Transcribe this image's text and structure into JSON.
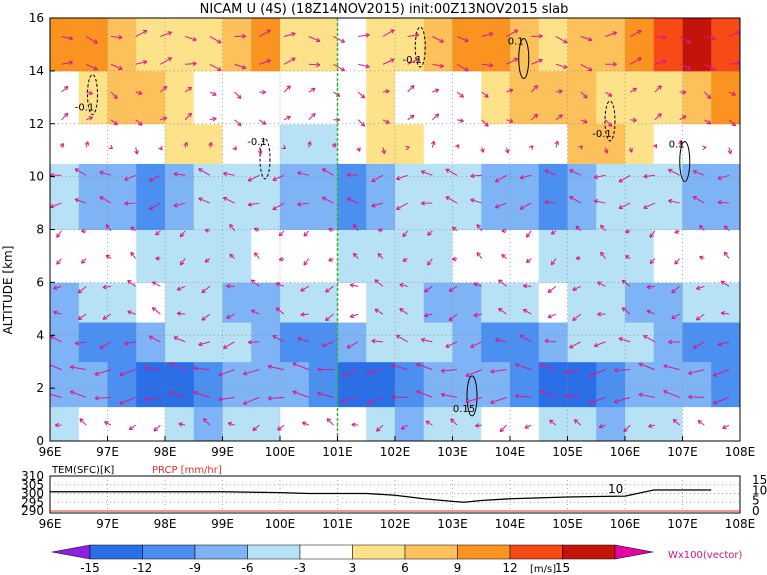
{
  "title": "NICAM U (4S) (18Z14NOV2015) init:00Z13NOV2015 slab",
  "chart_data": [
    {
      "type": "heatmap",
      "xlabel": "",
      "ylabel": "ALTITUDE [km]",
      "x_ticks": [
        "96E",
        "97E",
        "98E",
        "99E",
        "100E",
        "101E",
        "102E",
        "103E",
        "104E",
        "105E",
        "106E",
        "107E",
        "108E"
      ],
      "y_ticks": [
        "0",
        "2",
        "4",
        "6",
        "8",
        "10",
        "12",
        "14",
        "16"
      ],
      "xlim": [
        96,
        108
      ],
      "ylim": [
        0,
        16
      ],
      "marker_line_lon": 101.0,
      "contour_labels": [
        {
          "text": "-0.1",
          "lon": 96.6,
          "alt": 12.5
        },
        {
          "text": "-0.1",
          "lon": 99.6,
          "alt": 11.2
        },
        {
          "text": "-0.1",
          "lon": 102.3,
          "alt": 14.3
        },
        {
          "text": "0.1",
          "lon": 104.1,
          "alt": 15.0
        },
        {
          "text": "-0.1",
          "lon": 105.6,
          "alt": 11.5
        },
        {
          "text": "0.1",
          "lon": 106.9,
          "alt": 11.1
        },
        {
          "text": "0.15",
          "lon": 103.2,
          "alt": 1.1
        }
      ],
      "u_field_m_per_s": [
        {
          "alt_range": [
            0,
            1.3
          ],
          "u": -4
        },
        {
          "alt_range": [
            1.3,
            3.0
          ],
          "u": -10
        },
        {
          "alt_range": [
            3.0,
            4.5
          ],
          "u": -7
        },
        {
          "alt_range": [
            4.5,
            6.0
          ],
          "u": -5
        },
        {
          "alt_range": [
            6.0,
            8.0
          ],
          "u": -3
        },
        {
          "alt_range": [
            8.0,
            10.5
          ],
          "u": -7
        },
        {
          "alt_range": [
            10.5,
            12.0
          ],
          "u": 1
        },
        {
          "alt_range": [
            12.0,
            14.0
          ],
          "u": 4
        },
        {
          "alt_range": [
            14.0,
            16.0
          ],
          "u": 7
        }
      ]
    },
    {
      "type": "line",
      "left_label": "TEM(SFC)[K]",
      "right_label": "PRCP [mm/hr]",
      "left_ticks": [
        "290",
        "295",
        "300",
        "305",
        "310"
      ],
      "right_ticks": [
        "0",
        "5",
        "10",
        "15"
      ],
      "x_ticks": [
        "96E",
        "97E",
        "98E",
        "99E",
        "100E",
        "101E",
        "102E",
        "103E",
        "104E",
        "105E",
        "106E",
        "107E",
        "108E"
      ],
      "series": [
        {
          "x": [
            96,
            96.5,
            97,
            98,
            99,
            100,
            100.5,
            101,
            101.5,
            102,
            102.5,
            103,
            103.2,
            103.5,
            104,
            104.5,
            105,
            105.5,
            106,
            106.5,
            107,
            107.5
          ],
          "values": [
            301,
            301,
            301,
            301,
            301,
            300.5,
            300,
            300,
            300,
            299,
            297,
            295.5,
            295,
            296,
            297,
            297.5,
            298,
            298.3,
            298.5,
            302,
            302,
            302
          ]
        }
      ],
      "annotation": "10"
    }
  ],
  "colorbar": {
    "levels": [
      "-15",
      "-12",
      "-9",
      "-6",
      "-3",
      "3",
      "6",
      "9",
      "12",
      "15"
    ],
    "unit": "[m/s]",
    "colors": [
      "#8e1ee0",
      "#2a6fe8",
      "#4b8ff0",
      "#7eb4f5",
      "#b7e1f5",
      "#ffffff",
      "#fde28a",
      "#fcc15a",
      "#fb9320",
      "#f74a16",
      "#c4140a",
      "#e600a3"
    ],
    "vector_label": "Wx100(vector)"
  }
}
